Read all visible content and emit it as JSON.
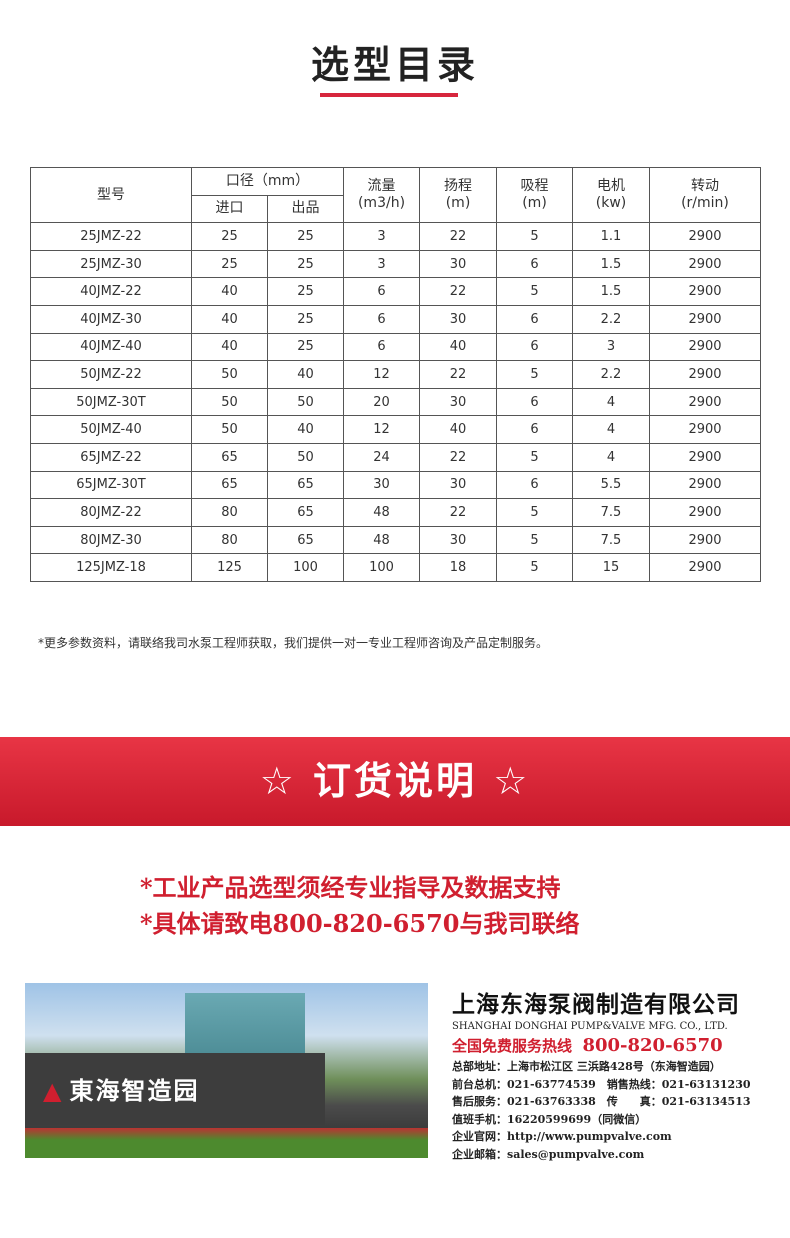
{
  "title": "选型目录",
  "table": {
    "headers": {
      "model": "型号",
      "caliber": "口径（mm）",
      "inlet": "进口",
      "outlet": "出品",
      "flow": "流量",
      "flow_unit": "(m3/h)",
      "head": "扬程",
      "head_unit": "(m)",
      "suction": "吸程",
      "suction_unit": "(m)",
      "motor": "电机",
      "motor_unit": "(kw)",
      "speed": "转动",
      "speed_unit": "(r/min)"
    },
    "rows": [
      [
        "25JMZ-22",
        "25",
        "25",
        "3",
        "22",
        "5",
        "1.1",
        "2900"
      ],
      [
        "25JMZ-30",
        "25",
        "25",
        "3",
        "30",
        "6",
        "1.5",
        "2900"
      ],
      [
        "40JMZ-22",
        "40",
        "25",
        "6",
        "22",
        "5",
        "1.5",
        "2900"
      ],
      [
        "40JMZ-30",
        "40",
        "25",
        "6",
        "30",
        "6",
        "2.2",
        "2900"
      ],
      [
        "40JMZ-40",
        "40",
        "25",
        "6",
        "40",
        "6",
        "3",
        "2900"
      ],
      [
        "50JMZ-22",
        "50",
        "40",
        "12",
        "22",
        "5",
        "2.2",
        "2900"
      ],
      [
        "50JMZ-30T",
        "50",
        "50",
        "20",
        "30",
        "6",
        "4",
        "2900"
      ],
      [
        "50JMZ-40",
        "50",
        "40",
        "12",
        "40",
        "6",
        "4",
        "2900"
      ],
      [
        "65JMZ-22",
        "65",
        "50",
        "24",
        "22",
        "5",
        "4",
        "2900"
      ],
      [
        "65JMZ-30T",
        "65",
        "65",
        "30",
        "30",
        "6",
        "5.5",
        "2900"
      ],
      [
        "80JMZ-22",
        "80",
        "65",
        "48",
        "22",
        "5",
        "7.5",
        "2900"
      ],
      [
        "80JMZ-30",
        "80",
        "65",
        "48",
        "30",
        "5",
        "7.5",
        "2900"
      ],
      [
        "125JMZ-18",
        "125",
        "100",
        "100",
        "18",
        "5",
        "15",
        "2900"
      ]
    ]
  },
  "note": "*更多参数资料，请联络我司水泵工程师获取，我们提供一对一专业工程师咨询及产品定制服务。",
  "banner": {
    "title": "☆ 订货说明 ☆"
  },
  "order_notes": [
    "*工业产品选型须经专业指导及数据支持",
    "*具体请致电800-820-6570与我司联络"
  ],
  "photo": {
    "sign": "東海智造园"
  },
  "company": {
    "name_cn": "上海东海泵阀制造有限公司",
    "name_en": "SHANGHAI DONGHAI PUMP&VALVE MFG. CO., LTD.",
    "hotline_label": "全国免费服务热线",
    "hotline": "800-820-6570",
    "lines": [
      "总部地址：上海市松江区 三浜路428号（东海智造园）",
      "前台总机：021-63774539　销售热线：021-63131230",
      "售后服务：021-63763338　传　　真：021-63134513",
      "值班手机：16220599699（同微信）",
      "企业官网：http://www.pumpvalve.com",
      "企业邮箱：sales@pumpvalve.com"
    ]
  },
  "colors": {
    "accent": "#d01f2f",
    "banner": "#e03040"
  }
}
